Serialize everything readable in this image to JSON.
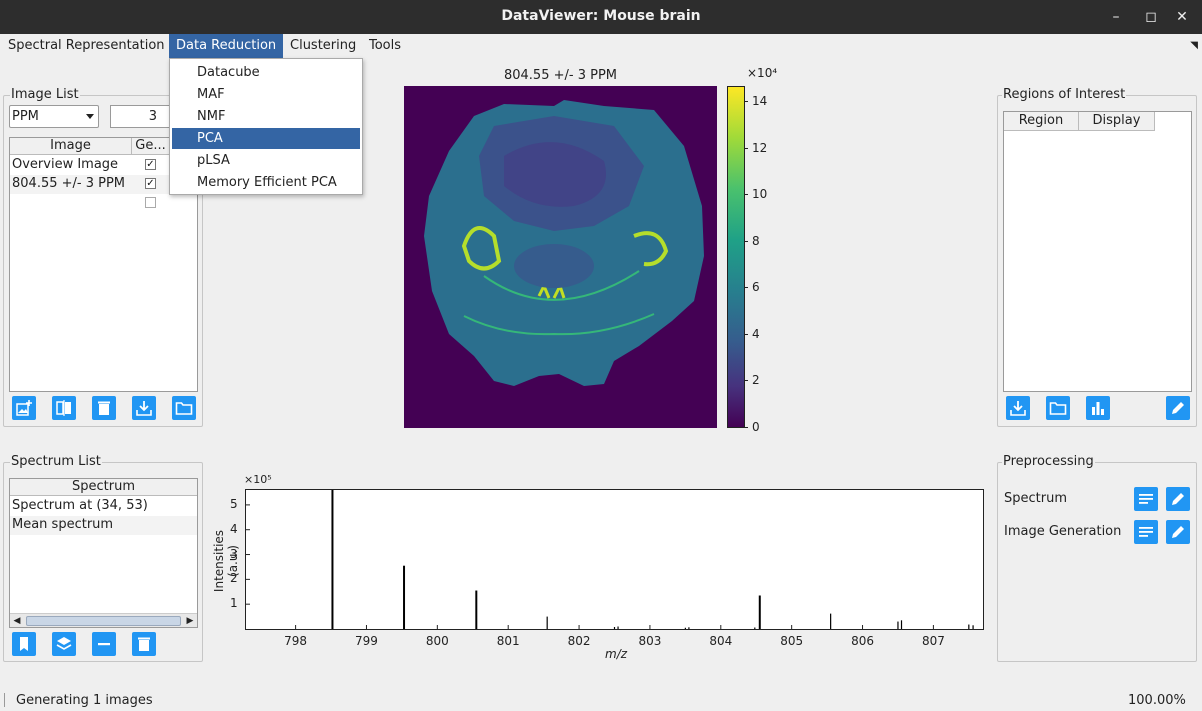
{
  "window": {
    "title": "DataViewer: Mouse brain"
  },
  "menubar": {
    "items": [
      "Spectral Representation",
      "Data Reduction",
      "Clustering",
      "Tools"
    ],
    "active": "Data Reduction"
  },
  "dropdown": {
    "items": [
      "Datacube",
      "MAF",
      "NMF",
      "PCA",
      "pLSA",
      "Memory Efficient PCA"
    ],
    "selected": "PCA"
  },
  "image_list": {
    "title": "Image List",
    "unit_select": "PPM",
    "tolerance_value": "3",
    "columns": [
      "Image",
      "Ge..."
    ],
    "rows": [
      {
        "name": "Overview Image",
        "checked": true
      },
      {
        "name": "804.55 +/- 3 PPM",
        "checked": true
      },
      {
        "name": "",
        "checked": false
      }
    ],
    "buttons": [
      "add-image-icon",
      "compare-icon",
      "delete-icon",
      "download-icon",
      "folder-icon"
    ]
  },
  "image_view": {
    "title": "804.55 +/- 3 PPM",
    "colorbar_exponent": "×10⁴",
    "colorbar_ticks": [
      "14",
      "12",
      "10",
      "8",
      "6",
      "4",
      "2",
      "0"
    ],
    "colormap": [
      "#440154",
      "#46327e",
      "#365c8d",
      "#277f8e",
      "#1fa187",
      "#4ac16d",
      "#a0da39",
      "#fde725"
    ]
  },
  "regions": {
    "title": "Regions of Interest",
    "columns": [
      "Region",
      "Display"
    ],
    "buttons": [
      "download-icon",
      "folder-icon",
      "bar-chart-icon",
      "edit-icon"
    ]
  },
  "spectrum_list": {
    "title": "Spectrum List",
    "columns": [
      "Spectrum"
    ],
    "rows": [
      "Spectrum at (34, 53)",
      "Mean spectrum"
    ],
    "buttons": [
      "bookmark-icon",
      "layers-icon",
      "minus-icon",
      "delete-icon"
    ]
  },
  "preprocessing": {
    "title": "Preprocessing",
    "rows": [
      "Spectrum",
      "Image Generation"
    ]
  },
  "chart_data": {
    "type": "bar",
    "title": "",
    "xlabel": "m/z",
    "ylabel": "Intensities (a.u.)",
    "y_exponent": "×10⁵",
    "xlim": [
      797.3,
      807.7
    ],
    "ylim": [
      0,
      5.6
    ],
    "xticks": [
      "798",
      "799",
      "800",
      "801",
      "802",
      "803",
      "804",
      "805",
      "806",
      "807"
    ],
    "yticks": [
      "1",
      "2",
      "3",
      "4",
      "5"
    ],
    "peaks": [
      {
        "x": 798.52,
        "y": 5.6
      },
      {
        "x": 799.53,
        "y": 2.55
      },
      {
        "x": 800.55,
        "y": 1.55
      },
      {
        "x": 801.55,
        "y": 0.5
      },
      {
        "x": 802.5,
        "y": 0.08
      },
      {
        "x": 802.55,
        "y": 0.1
      },
      {
        "x": 803.5,
        "y": 0.05
      },
      {
        "x": 803.55,
        "y": 0.07
      },
      {
        "x": 804.48,
        "y": 0.06
      },
      {
        "x": 804.55,
        "y": 1.35
      },
      {
        "x": 805.55,
        "y": 0.62
      },
      {
        "x": 806.5,
        "y": 0.3
      },
      {
        "x": 806.55,
        "y": 0.35
      },
      {
        "x": 807.5,
        "y": 0.18
      },
      {
        "x": 807.56,
        "y": 0.15
      }
    ]
  },
  "status": {
    "message": "Generating 1 images",
    "progress": "100.00%"
  }
}
